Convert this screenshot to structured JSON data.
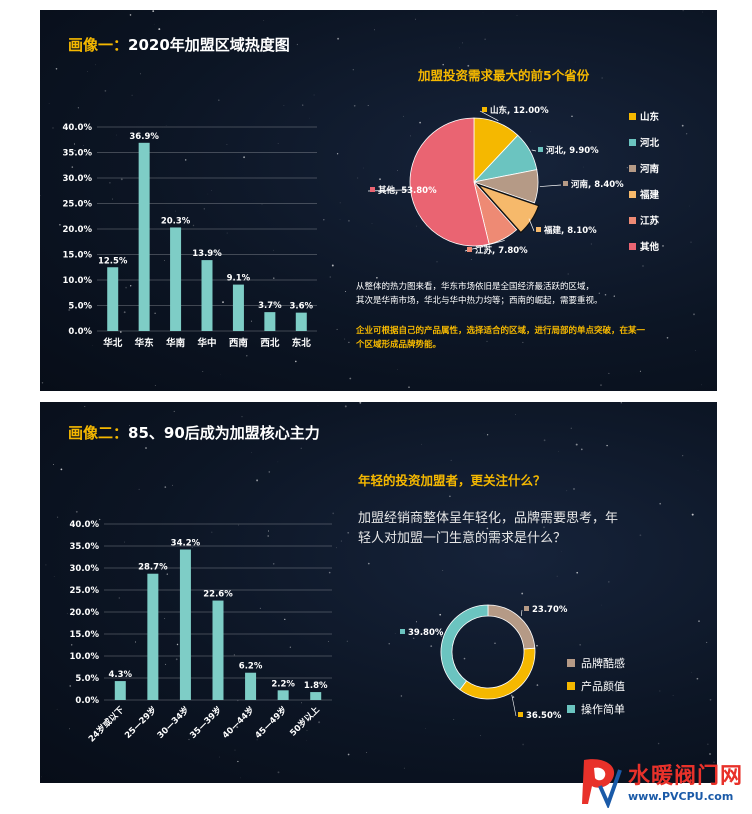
{
  "panel1": {
    "title_prefix": "画像一：",
    "title_text": "2020年加盟区域热度图",
    "pie_title": "加盟投资需求最大的前5个省份",
    "desc1": "从整体的热力图来看，华东市场依旧是全国经济最活跃的区域，",
    "desc2": "其次是华南市场，华北与华中热力均等；西南的崛起，需要重视。",
    "highlight1": "企业可根据自己的产品属性，选择适合的区域，进行局部的单点突破，在某一",
    "highlight2": "个区域形成品牌势能。"
  },
  "panel2": {
    "title_prefix": "画像二：",
    "title_text": "85、90后成为加盟核心主力",
    "question": "年轻的投资加盟者，更关注什么？",
    "body1": "加盟经销商整体呈年轻化，品牌需要思考，年",
    "body2": "轻人对加盟一门生意的需求是什么？"
  },
  "logo": {
    "name": "水暖阀门网",
    "url": "www.PVCPU.com"
  },
  "colors": {
    "bar": "#7ecdc6",
    "accent": "#f5b800",
    "background": "#0c1524"
  },
  "chart_data": [
    {
      "type": "bar",
      "categories": [
        "华北",
        "华东",
        "华南",
        "华中",
        "西南",
        "西北",
        "东北"
      ],
      "values": [
        12.5,
        36.9,
        20.3,
        13.9,
        9.1,
        3.7,
        3.6
      ],
      "value_labels": [
        "12.5%",
        "36.9%",
        "20.3%",
        "13.9%",
        "9.1%",
        "3.7%",
        "3.6%"
      ],
      "ylim": [
        0,
        40
      ],
      "yticks": [
        "0.0%",
        "5.0%",
        "10.0%",
        "15.0%",
        "20.0%",
        "25.0%",
        "30.0%",
        "35.0%",
        "40.0%"
      ],
      "grid": true
    },
    {
      "type": "pie",
      "title": "加盟投资需求最大的前5个省份",
      "labels": [
        "山东",
        "河北",
        "河南",
        "福建",
        "江苏",
        "其他"
      ],
      "values": [
        12.0,
        9.9,
        8.4,
        8.1,
        7.8,
        53.8
      ],
      "value_labels": [
        "山东, 12.00%",
        "河北, 9.90%",
        "河南, 8.40%",
        "福建, 8.10%",
        "江苏, 7.80%",
        "其他, 53.80%"
      ],
      "colors": [
        "#f5b800",
        "#6bc4c0",
        "#b59a86",
        "#f6b96b",
        "#ee8a74",
        "#ea6472"
      ],
      "legend": "right"
    },
    {
      "type": "bar",
      "categories": [
        "24岁或以下",
        "25—29岁",
        "30—34岁",
        "35—39岁",
        "40—44岁",
        "45—49岁",
        "50岁以上"
      ],
      "values": [
        4.3,
        28.7,
        34.2,
        22.6,
        6.2,
        2.2,
        1.8
      ],
      "value_labels": [
        "4.3%",
        "28.7%",
        "34.2%",
        "22.6%",
        "6.2%",
        "2.2%",
        "1.8%"
      ],
      "ylim": [
        0,
        40
      ],
      "yticks": [
        "0.0%",
        "5.0%",
        "10.0%",
        "15.0%",
        "20.0%",
        "25.0%",
        "30.0%",
        "35.0%",
        "40.0%"
      ],
      "grid": true
    },
    {
      "type": "pie",
      "subtype": "donut",
      "labels": [
        "品牌酷感",
        "产品颜值",
        "操作简单"
      ],
      "values": [
        23.7,
        36.5,
        39.8
      ],
      "value_labels": [
        "23.70%",
        "36.50%",
        "39.80%"
      ],
      "colors": [
        "#b59a86",
        "#f5b800",
        "#6bc4c0"
      ],
      "legend": "right"
    }
  ]
}
